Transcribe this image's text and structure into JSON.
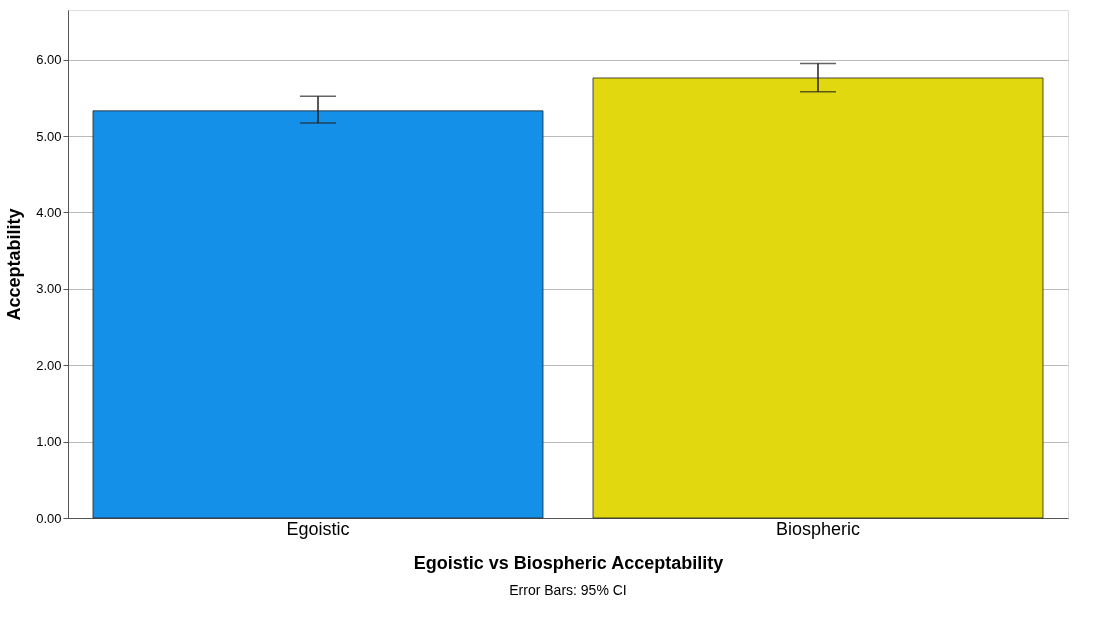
{
  "chart_data": {
    "type": "bar",
    "xlabel": "Egoistic vs Biospheric Acceptability",
    "ylabel": "Acceptability",
    "categories": [
      "Egoistic",
      "Biospheric"
    ],
    "values": [
      5.33,
      5.76
    ],
    "errors": [
      [
        5.17,
        5.52
      ],
      [
        5.58,
        5.95
      ]
    ],
    "colors": [
      "#1490e8",
      "#e2d80f"
    ],
    "ylim": [
      0,
      6.65
    ],
    "yticks": [
      {
        "value": 0,
        "label": "0.00"
      },
      {
        "value": 1,
        "label": "1.00"
      },
      {
        "value": 2,
        "label": "2.00"
      },
      {
        "value": 3,
        "label": "3.00"
      },
      {
        "value": 4,
        "label": "4.00"
      },
      {
        "value": 5,
        "label": "5.00"
      },
      {
        "value": 6,
        "label": "6.00"
      }
    ],
    "grid": "y",
    "annotations": [
      "Error Bars: 95% CI"
    ]
  }
}
